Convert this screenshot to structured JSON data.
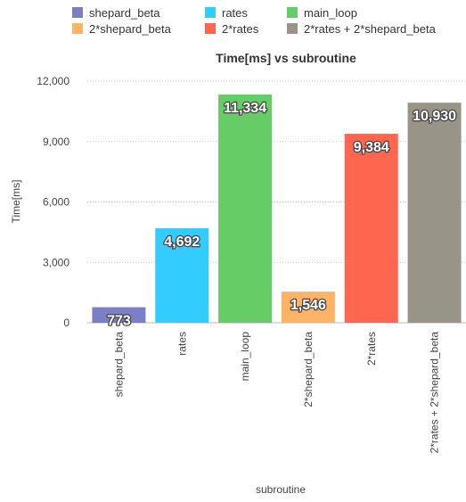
{
  "chart_data": {
    "type": "bar",
    "title": "Time[ms] vs subroutine",
    "xlabel": "subroutine",
    "ylabel": "Time[ms]",
    "ylim": [
      0,
      12000
    ],
    "yticks": [
      0,
      3000,
      6000,
      9000,
      12000
    ],
    "ytick_labels": [
      "0",
      "3,000",
      "6,000",
      "9,000",
      "12,000"
    ],
    "grid": true,
    "legend_position": "top",
    "categories": [
      "shepard_beta",
      "rates",
      "main_loop",
      "2*shepard_beta",
      "2*rates",
      "2*rates + 2*shepard_beta"
    ],
    "values": [
      773,
      4692,
      11334,
      1546,
      9384,
      10930
    ],
    "value_labels": [
      "773",
      "4,692",
      "11,334",
      "1,546",
      "9,384",
      "10,930"
    ],
    "colors": [
      "#7b7fc4",
      "#33ccff",
      "#66cc66",
      "#ffb366",
      "#ff6650",
      "#999488"
    ],
    "legend": [
      "shepard_beta",
      "rates",
      "main_loop",
      "2*shepard_beta",
      "2*rates",
      "2*rates + 2*shepard_beta"
    ]
  }
}
